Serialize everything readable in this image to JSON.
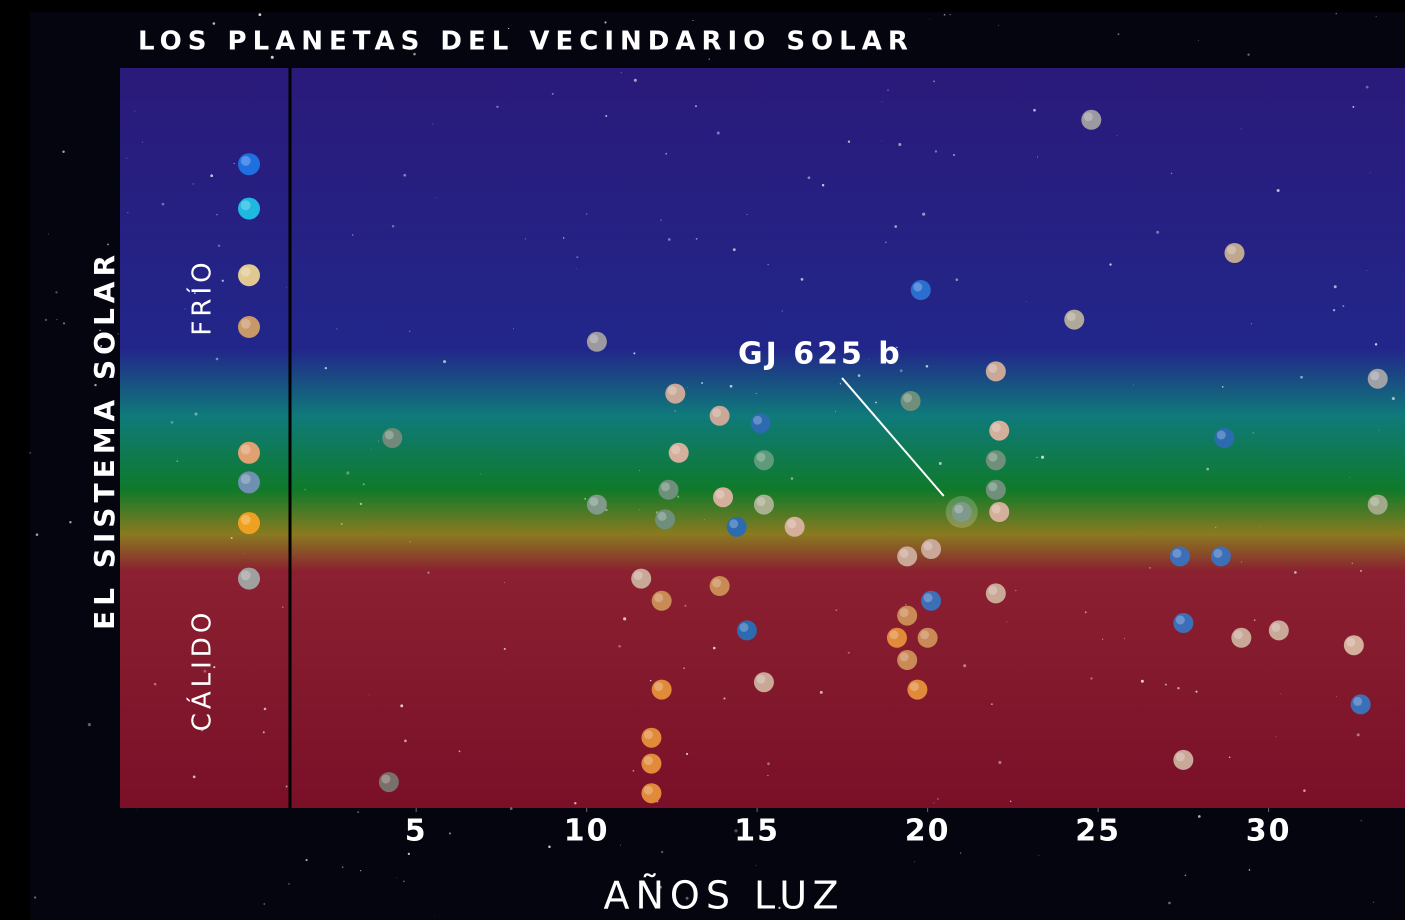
{
  "chart_data": {
    "type": "scatter",
    "title": "LOS PLANETAS DEL VECINDARIO SOLAR",
    "xlabel": "AÑOS LUZ",
    "ylabel": "EL SISTEMA SOLAR",
    "zone_labels": [
      "FRÍO",
      "CÁLIDO"
    ],
    "annotation": {
      "text": "GJ 625 b",
      "x": 21,
      "y": 0.4
    },
    "xlim": [
      1.3,
      34
    ],
    "ylim": [
      0,
      1
    ],
    "xticks": [
      5,
      10,
      15,
      20,
      25,
      30
    ],
    "x": [
      4.3,
      4.2,
      10.3,
      10.3,
      11.6,
      12.2,
      12.2,
      11.9,
      11.9,
      11.9,
      12.4,
      12.3,
      12.6,
      12.7,
      13.9,
      14,
      13.9,
      15.1,
      15.2,
      15.2,
      14.4,
      16.1,
      14.7,
      15.2,
      19.8,
      19.5,
      21,
      19.4,
      20.1,
      19.4,
      20.1,
      19.1,
      20,
      19.4,
      19.7,
      22,
      22.1,
      22,
      22,
      22.1,
      22,
      24.8,
      24.3,
      29,
      28.7,
      27.4,
      28.6,
      27.5,
      29.2,
      30.3,
      32.5,
      32.7,
      27.5,
      33.2,
      33.2
    ],
    "values": [
      0.5,
      0.035,
      0.63,
      0.41,
      0.31,
      0.28,
      0.16,
      0.095,
      0.06,
      0.02,
      0.43,
      0.39,
      0.56,
      0.48,
      0.53,
      0.42,
      0.3,
      0.52,
      0.47,
      0.41,
      0.38,
      0.38,
      0.24,
      0.17,
      0.7,
      0.55,
      0.4,
      0.34,
      0.35,
      0.26,
      0.28,
      0.23,
      0.23,
      0.2,
      0.16,
      0.59,
      0.51,
      0.47,
      0.43,
      0.4,
      0.29,
      0.93,
      0.66,
      0.75,
      0.5,
      0.34,
      0.34,
      0.25,
      0.23,
      0.24,
      0.22,
      0.14,
      0.065,
      0.58,
      0.41
    ],
    "colors": [
      "#6f8a78",
      "#7a6f6a",
      "#9c9aa0",
      "#7f9a8a",
      "#c9a898",
      "#c98a55",
      "#e08a3a",
      "#e08a3a",
      "#e08a3a",
      "#e08a3a",
      "#6f8f7a",
      "#6f8f7a",
      "#c9a898",
      "#d4b09c",
      "#c9a898",
      "#d4b09c",
      "#c98a55",
      "#2c6bb0",
      "#5f9a7a",
      "#a8b090",
      "#2c6bb0",
      "#d4b09c",
      "#2c6bb0",
      "#c9a898",
      "#2a6fd0",
      "#6f8f7a",
      "#5f8070",
      "#c9a898",
      "#c9a898",
      "#c98a55",
      "#3c6fb8",
      "#e08a3a",
      "#c98a55",
      "#c98a55",
      "#e08a3a",
      "#c9a898",
      "#d4b09c",
      "#6f8f7a",
      "#6f8f7a",
      "#d4b09c",
      "#c9a898",
      "#9c9aa0",
      "#b0a89a",
      "#c0a890",
      "#2c6bb0",
      "#3c6fb8",
      "#3c6fb8",
      "#3c6fb8",
      "#c9a898",
      "#c9a898",
      "#d4b09c",
      "#3c6fb8",
      "#c9a898",
      "#a0a0a8",
      "#a0aa8a"
    ],
    "solar_system": {
      "values": [
        0.87,
        0.81,
        0.72,
        0.65,
        0.48,
        0.44,
        0.385,
        0.31
      ],
      "colors": [
        "#1f6fe0",
        "#1fb8e0",
        "#e0c890",
        "#c89868",
        "#e0a070",
        "#6f90b0",
        "#f0a020",
        "#a0a0a0"
      ]
    }
  }
}
